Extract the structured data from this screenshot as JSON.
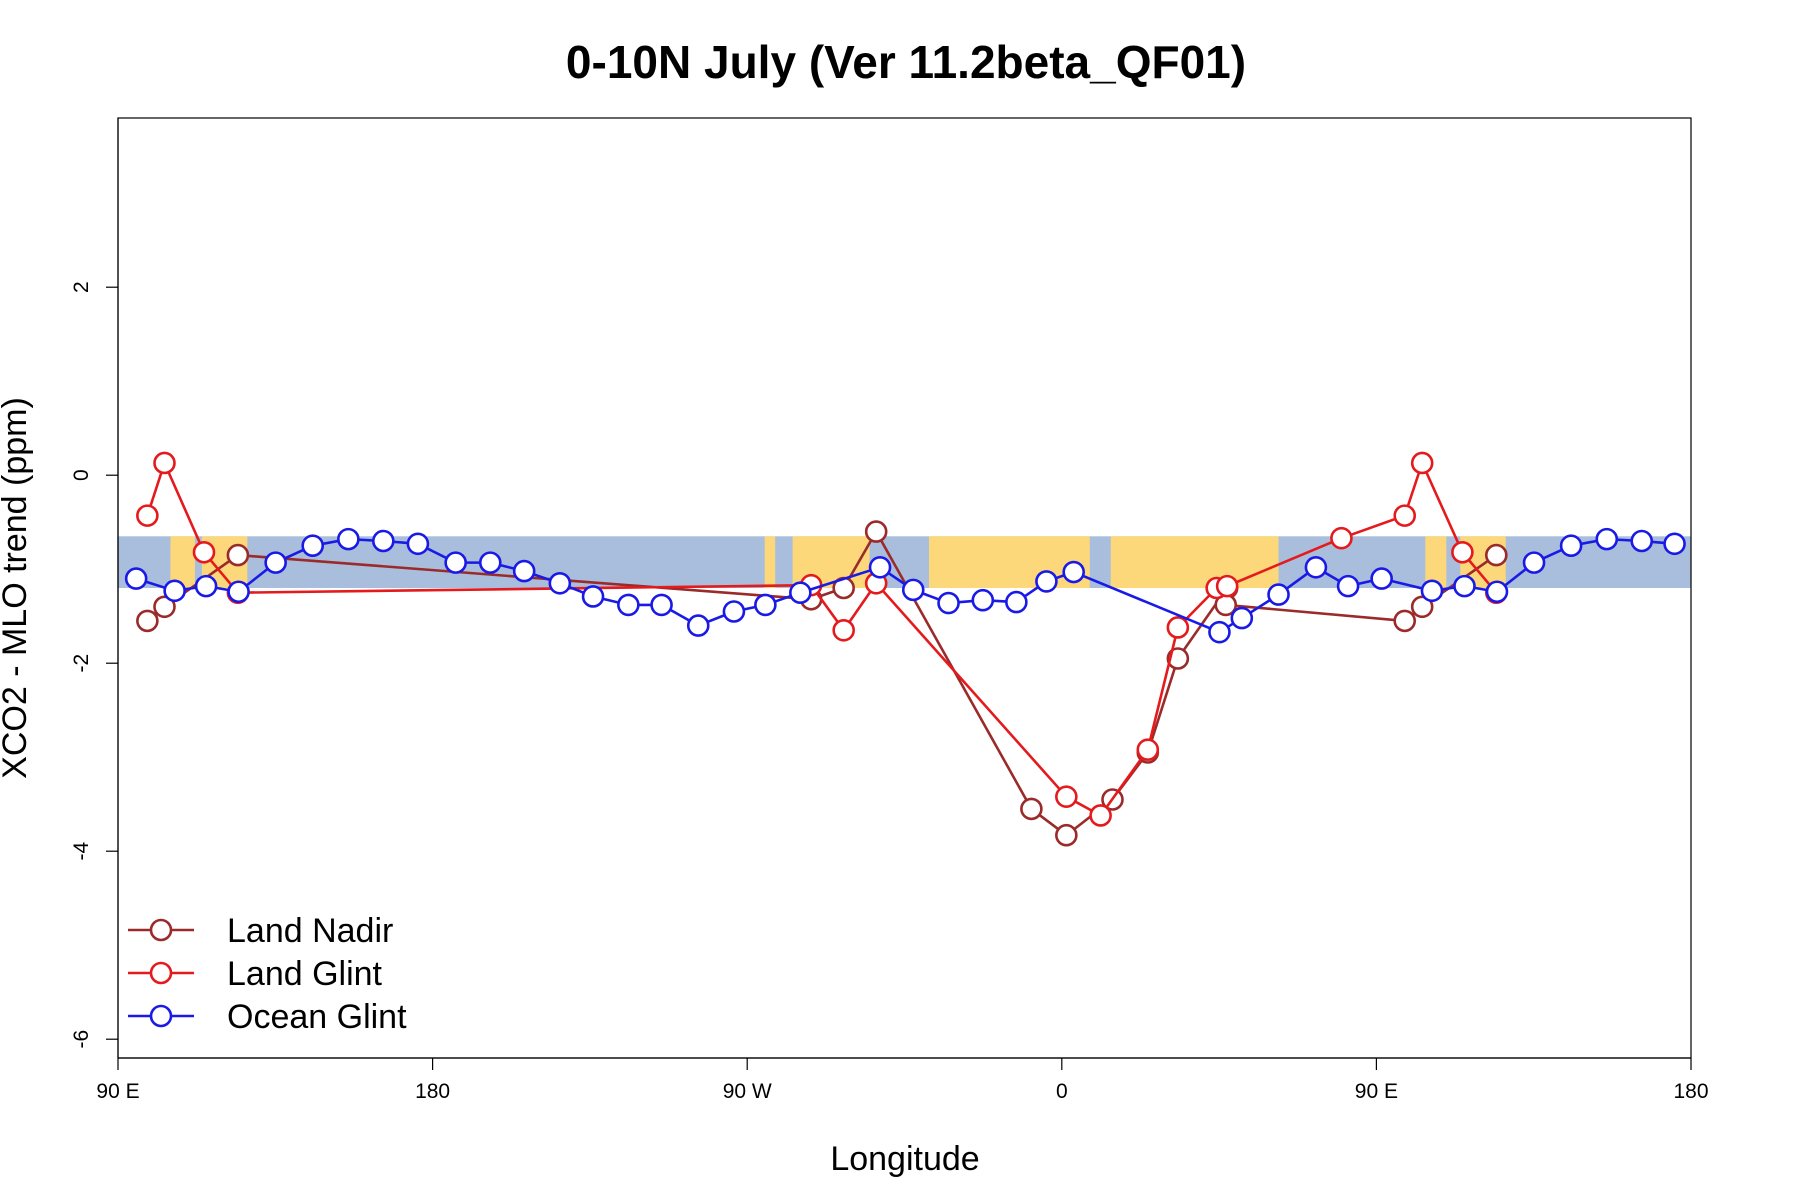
{
  "chart_data": {
    "type": "line",
    "title": "0-10N July (Ver 11.2beta_QF01)",
    "xlabel": "Longitude",
    "ylabel": "XCO2 - MLO trend (ppm)",
    "xlim": [
      90,
      540
    ],
    "ylim": [
      -6.2,
      3.8
    ],
    "x_ticks": [
      {
        "value": 90,
        "label": "90 E"
      },
      {
        "value": 180,
        "label": "180"
      },
      {
        "value": 270,
        "label": "90 W"
      },
      {
        "value": 360,
        "label": "0"
      },
      {
        "value": 450,
        "label": "90 E"
      },
      {
        "value": 540,
        "label": "180"
      }
    ],
    "y_ticks": [
      {
        "value": -6,
        "label": "-6"
      },
      {
        "value": -4,
        "label": "-4"
      },
      {
        "value": -2,
        "label": "-2"
      },
      {
        "value": 0,
        "label": "0"
      },
      {
        "value": 2,
        "label": "2"
      }
    ],
    "reference_band": {
      "ymin": -1.2,
      "ymax": -0.65,
      "ocean_color": "#a8bedc",
      "land_color": "#fcd87a"
    },
    "land_segments": [
      [
        105,
        112
      ],
      [
        114,
        127
      ],
      [
        275,
        278
      ],
      [
        283,
        305
      ],
      [
        322,
        368
      ],
      [
        374,
        422
      ],
      [
        464,
        470
      ],
      [
        474,
        487
      ]
    ],
    "series": [
      {
        "name": "Land Nadir",
        "color": "#9b2a2a",
        "points": [
          [
            98.4,
            -1.55
          ],
          [
            103.3,
            -1.4
          ],
          [
            124.3,
            -0.85
          ],
          [
            288.3,
            -1.32
          ],
          [
            297.6,
            -1.2
          ],
          [
            306.9,
            -0.6
          ],
          [
            351.3,
            -3.55
          ],
          [
            361.3,
            -3.83
          ],
          [
            374.5,
            -3.45
          ],
          [
            384.6,
            -2.95
          ],
          [
            393.2,
            -1.95
          ],
          [
            407.3,
            -1.2
          ],
          [
            406.9,
            -1.38
          ],
          [
            458.1,
            -1.55
          ],
          [
            463.1,
            -1.4
          ],
          [
            484.3,
            -0.85
          ]
        ]
      },
      {
        "name": "Land Glint",
        "color": "#e41a1c",
        "points": [
          [
            98.4,
            -0.43
          ],
          [
            103.3,
            0.13
          ],
          [
            114.6,
            -0.82
          ],
          [
            124.3,
            -1.25
          ],
          [
            288.3,
            -1.17
          ],
          [
            297.6,
            -1.65
          ],
          [
            306.9,
            -1.15
          ],
          [
            361.3,
            -3.42
          ],
          [
            371.1,
            -3.62
          ],
          [
            384.6,
            -2.92
          ],
          [
            393.2,
            -1.62
          ],
          [
            404.3,
            -1.2
          ],
          [
            407.3,
            -1.18
          ],
          [
            440.0,
            -0.67
          ],
          [
            458.1,
            -0.43
          ],
          [
            463.1,
            0.13
          ],
          [
            474.6,
            -0.82
          ],
          [
            484.3,
            -1.25
          ]
        ]
      },
      {
        "name": "Ocean Glint",
        "color": "#1a1ae6",
        "points": [
          [
            95.2,
            -1.1
          ],
          [
            106.2,
            -1.23
          ],
          [
            115.2,
            -1.18
          ],
          [
            124.5,
            -1.24
          ],
          [
            135.1,
            -0.93
          ],
          [
            145.7,
            -0.75
          ],
          [
            155.9,
            -0.68
          ],
          [
            165.9,
            -0.7
          ],
          [
            175.8,
            -0.73
          ],
          [
            186.6,
            -0.93
          ],
          [
            196.5,
            -0.93
          ],
          [
            206.2,
            -1.02
          ],
          [
            216.4,
            -1.15
          ],
          [
            225.9,
            -1.29
          ],
          [
            236.0,
            -1.38
          ],
          [
            245.5,
            -1.38
          ],
          [
            256.0,
            -1.6
          ],
          [
            266.2,
            -1.45
          ],
          [
            275.2,
            -1.38
          ],
          [
            285.2,
            -1.25
          ],
          [
            308.0,
            -0.98
          ],
          [
            317.5,
            -1.22
          ],
          [
            327.6,
            -1.36
          ],
          [
            337.4,
            -1.33
          ],
          [
            347.0,
            -1.35
          ],
          [
            355.6,
            -1.13
          ],
          [
            363.4,
            -1.03
          ],
          [
            405.1,
            -1.67
          ],
          [
            411.5,
            -1.52
          ],
          [
            422.0,
            -1.27
          ],
          [
            432.7,
            -0.98
          ],
          [
            441.9,
            -1.18
          ],
          [
            451.5,
            -1.1
          ],
          [
            465.9,
            -1.23
          ],
          [
            475.2,
            -1.18
          ],
          [
            484.5,
            -1.24
          ],
          [
            495.1,
            -0.93
          ],
          [
            505.7,
            -0.75
          ],
          [
            515.9,
            -0.68
          ],
          [
            525.9,
            -0.7
          ],
          [
            535.3,
            -0.73
          ]
        ]
      }
    ],
    "legend": {
      "position": "bottom-left",
      "entries": [
        "Land Nadir",
        "Land Glint",
        "Ocean Glint"
      ]
    }
  }
}
